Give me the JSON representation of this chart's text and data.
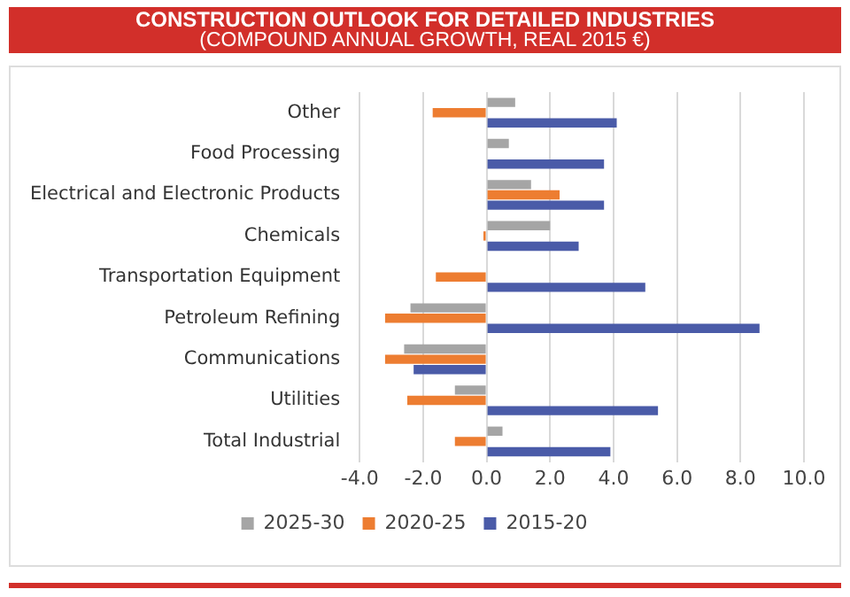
{
  "chart_data": {
    "type": "bar",
    "orientation": "horizontal",
    "title": "CONSTRUCTION OUTLOOK FOR DETAILED INDUSTRIES",
    "subtitle": "(COMPOUND ANNUAL GROWTH, REAL 2015 €)",
    "categories": [
      "Other",
      "Food Processing",
      "Electrical and Electronic Products",
      "Chemicals",
      "Transportation Equipment",
      "Petroleum Refining",
      "Communications",
      "Utilities",
      "Total Industrial"
    ],
    "series": [
      {
        "name": "2025-30",
        "color": "#a5a5a5",
        "values": [
          0.9,
          0.7,
          1.4,
          2.0,
          null,
          -2.4,
          -2.6,
          -1.0,
          0.5
        ]
      },
      {
        "name": "2020-25",
        "color": "#ed7d31",
        "values": [
          -1.7,
          null,
          2.3,
          -0.1,
          -1.6,
          -3.2,
          -3.2,
          -2.5,
          -1.0
        ]
      },
      {
        "name": "2015-20",
        "color": "#4a5ba8",
        "values": [
          4.1,
          3.7,
          3.7,
          2.9,
          5.0,
          8.6,
          -2.3,
          5.4,
          3.9
        ]
      }
    ],
    "xlim": [
      -4,
      10
    ],
    "xticks": [
      {
        "value": -4,
        "label": "-4.0"
      },
      {
        "value": -2,
        "label": "-2.0"
      },
      {
        "value": 0,
        "label": "0.0"
      },
      {
        "value": 2,
        "label": "2.0"
      },
      {
        "value": 4,
        "label": "4.0"
      },
      {
        "value": 6,
        "label": "6.0"
      },
      {
        "value": 8,
        "label": "8.0"
      },
      {
        "value": 10,
        "label": "10.0"
      }
    ],
    "grid": "x",
    "legend": "bottom"
  }
}
